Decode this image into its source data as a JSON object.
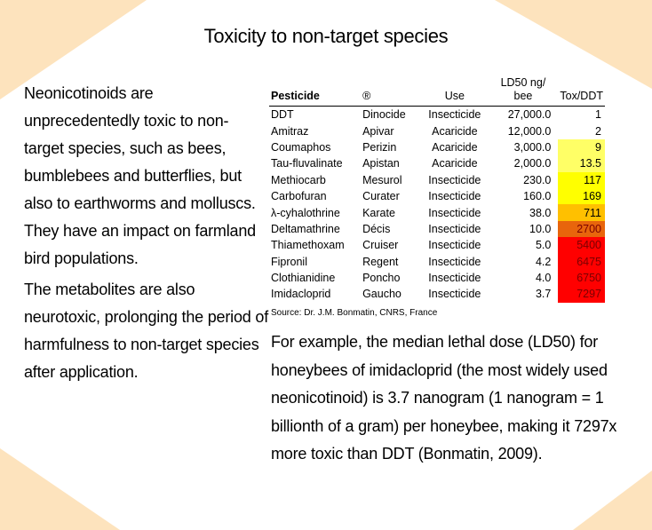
{
  "title": "Toxicity to non-target species",
  "left_paragraphs": [
    "Neonicotinoids are unprecedentedly toxic to non-target species, such as bees, bumblebees and butterflies, but also to earthworms and molluscs. They have an impact on farmland bird populations.",
    "The metabolites are also neurotoxic, prolonging the period of harmfulness to non-target species after application."
  ],
  "table": {
    "headers": [
      "Pesticide",
      "®",
      "Use",
      "LD50 ng/ bee",
      "Tox/DDT"
    ],
    "rows": [
      [
        "DDT",
        "Dinocide",
        "Insecticide",
        "27,000.0",
        "1",
        ""
      ],
      [
        "Amitraz",
        "Apivar",
        "Acaricide",
        "12,000.0",
        "2",
        ""
      ],
      [
        "Coumaphos",
        "Perizin",
        "Acaricide",
        "3,000.0",
        "9",
        "#ffff66"
      ],
      [
        "Tau-fluvalinate",
        "Apistan",
        "Acaricide",
        "2,000.0",
        "13.5",
        "#ffff66"
      ],
      [
        "Methiocarb",
        "Mesurol",
        "Insecticide",
        "230.0",
        "117",
        "#ffff00"
      ],
      [
        "Carbofuran",
        "Curater",
        "Insecticide",
        "160.0",
        "169",
        "#ffff00"
      ],
      [
        "λ-cyhalothrine",
        "Karate",
        "Insecticide",
        "38.0",
        "711",
        "#ffc000"
      ],
      [
        "Deltamathrine",
        "Décis",
        "Insecticide",
        "10.0",
        "2700",
        "#e8650c"
      ],
      [
        "Thiamethoxam",
        "Cruiser",
        "Insecticide",
        "5.0",
        "5400",
        "#ff0000"
      ],
      [
        "Fipronil",
        "Regent",
        "Insecticide",
        "4.2",
        "6475",
        "#ff0000"
      ],
      [
        "Clothianidine",
        "Poncho",
        "Insecticide",
        "4.0",
        "6750",
        "#ff0000"
      ],
      [
        "Imidacloprid",
        "Gaucho",
        "Insecticide",
        "3.7",
        "7297",
        "#ff0000"
      ]
    ],
    "source": "Source: Dr. J.M. Bonmatin, CNRS, France"
  },
  "right_paragraph": "For example, the median lethal dose (LD50) for honeybees of imidacloprid (the most widely used neonicotinoid) is 3.7 nanogram (1 nanogram = 1 billionth of a gram) per honeybee, making it 7297x more toxic than DDT (Bonmatin, 2009)."
}
